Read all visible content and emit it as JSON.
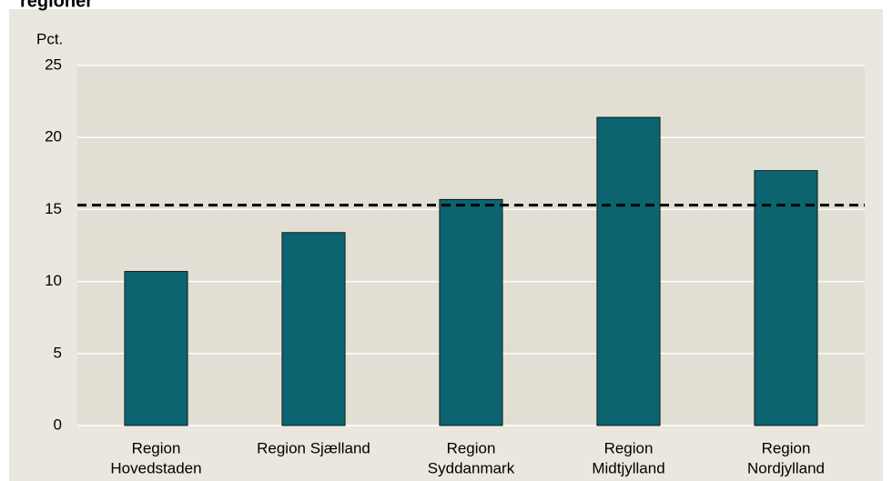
{
  "chart_data": {
    "type": "bar",
    "title": "regioner",
    "y_label": "Pct.",
    "categories": [
      [
        "Region",
        "Hovedstaden"
      ],
      [
        "Region Sjælland"
      ],
      [
        "Region",
        "Syddanmark"
      ],
      [
        "Region",
        "Midtjylland"
      ],
      [
        "Region",
        "Nordjylland"
      ]
    ],
    "values": [
      10.7,
      13.4,
      15.7,
      21.4,
      17.7
    ],
    "color": "#0b6470",
    "reference_line": 15.3,
    "ylim": [
      0,
      25
    ],
    "yticks": [
      0,
      5,
      10,
      15,
      20,
      25
    ],
    "grid": true
  }
}
